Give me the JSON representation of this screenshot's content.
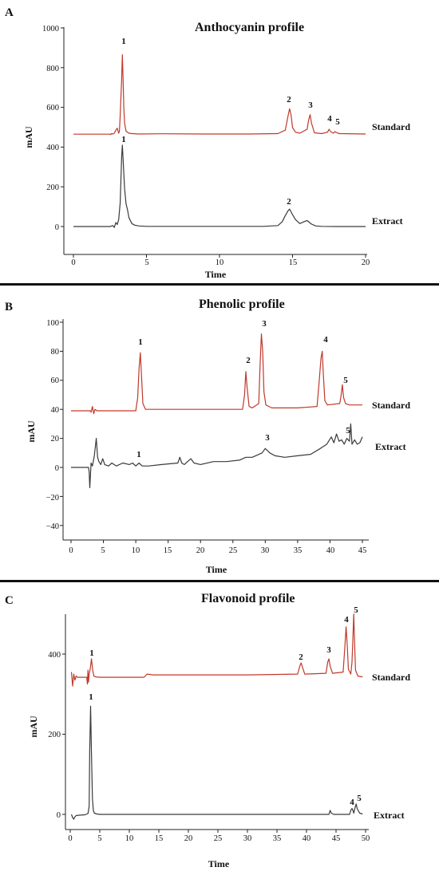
{
  "chart_data": [
    {
      "type": "line",
      "panel_letter": "A",
      "title": "Anthocyanin profile",
      "xlabel": "Time",
      "ylabel": "mAU",
      "xlim": [
        -0.8,
        20
      ],
      "ylim": [
        -115,
        1000
      ],
      "xticks": [
        "0",
        "5",
        "10",
        "15",
        "20"
      ],
      "yticks": [
        "0",
        "200",
        "400",
        "600",
        "800",
        "1000"
      ],
      "series": [
        {
          "name": "Standard",
          "color": "#c0392b",
          "x": [
            0,
            2.5,
            2.55,
            2.6,
            2.7,
            2.8,
            2.9,
            3.0,
            3.05,
            3.1,
            3.15,
            3.2,
            3.3,
            3.35,
            3.4,
            3.45,
            3.5,
            3.6,
            3.8,
            4.0,
            4.5,
            6,
            9,
            12,
            14.0,
            14.5,
            14.7,
            14.8,
            14.9,
            15.0,
            15.2,
            15.5,
            16.0,
            16.1,
            16.2,
            16.3,
            16.5,
            17.0,
            17.4,
            17.5,
            17.6,
            17.8,
            17.9,
            18.0,
            18.2,
            20
          ],
          "y": [
            465,
            465,
            463,
            468,
            466,
            470,
            485,
            495,
            482,
            470,
            480,
            560,
            740,
            865,
            745,
            600,
            520,
            480,
            470,
            468,
            466,
            467,
            466,
            466,
            468,
            485,
            560,
            593,
            560,
            498,
            475,
            470,
            490,
            535,
            563,
            520,
            472,
            468,
            475,
            490,
            478,
            470,
            478,
            473,
            468,
            466
          ]
        },
        {
          "name": "Extract",
          "color": "#3a3a3a",
          "x": [
            0,
            2.5,
            2.7,
            2.8,
            2.9,
            3.0,
            3.1,
            3.2,
            3.3,
            3.35,
            3.4,
            3.5,
            3.6,
            3.7,
            3.8,
            4.0,
            4.2,
            4.5,
            5,
            6,
            8,
            10,
            13,
            14.0,
            14.3,
            14.5,
            14.7,
            14.8,
            15.0,
            15.2,
            15.5,
            15.8,
            16.0,
            16.3,
            16.6,
            17,
            18,
            20
          ],
          "y": [
            0,
            0,
            5,
            -5,
            20,
            10,
            35,
            120,
            350,
            410,
            340,
            190,
            115,
            85,
            45,
            15,
            7,
            3,
            1,
            1,
            1,
            1,
            1,
            5,
            25,
            55,
            80,
            88,
            60,
            35,
            15,
            25,
            30,
            12,
            3,
            1,
            0,
            0
          ]
        }
      ],
      "trace_labels": [
        "Standard",
        "Extract"
      ],
      "peak_labels": [
        "1",
        "2",
        "3",
        "4",
        "5",
        "1",
        "2"
      ]
    },
    {
      "type": "line",
      "panel_letter": "B",
      "title": "Phenolic profile",
      "xlabel": "Time",
      "ylabel": "mAU",
      "xlim": [
        -1,
        45
      ],
      "ylim": [
        -55,
        100
      ],
      "xticks": [
        "0",
        "5",
        "10",
        "15",
        "20",
        "25",
        "30",
        "35",
        "40",
        "45"
      ],
      "yticks": [
        "−40",
        "−20",
        "0",
        "20",
        "40",
        "60",
        "80",
        "100"
      ],
      "series": [
        {
          "name": "Standard",
          "color": "#c0392b",
          "x": [
            0,
            3.0,
            3.1,
            3.3,
            3.5,
            3.7,
            4,
            10,
            10.3,
            10.5,
            10.7,
            10.9,
            11.1,
            11.5,
            20,
            26.5,
            26.8,
            27.0,
            27.2,
            27.5,
            28,
            29.0,
            29.2,
            29.4,
            29.6,
            29.8,
            30.1,
            31,
            35,
            38.0,
            38.3,
            38.6,
            38.8,
            39.0,
            39.2,
            39.6,
            41.5,
            41.7,
            41.9,
            42.1,
            42.4,
            43,
            45
          ],
          "y": [
            39,
            39,
            38,
            42,
            37,
            40,
            39,
            39,
            48,
            68,
            79,
            62,
            44,
            40,
            40,
            40,
            50,
            66,
            55,
            42,
            41,
            44,
            70,
            92,
            80,
            52,
            43,
            41,
            41,
            42,
            58,
            75,
            80,
            62,
            46,
            43,
            44,
            49,
            57,
            48,
            44,
            43,
            43
          ]
        },
        {
          "name": "Extract",
          "color": "#3a3a3a",
          "x": [
            0,
            2.7,
            2.8,
            2.9,
            3.1,
            3.3,
            3.6,
            3.9,
            4.1,
            4.3,
            4.6,
            4.9,
            5.2,
            5.8,
            6.3,
            7,
            8,
            9,
            9.5,
            10,
            10.5,
            11,
            12,
            14,
            16.5,
            16.8,
            17.1,
            17.5,
            18.5,
            19,
            20,
            22,
            24,
            26,
            27,
            28,
            29.5,
            30,
            30.7,
            31.5,
            33,
            35,
            37,
            38.5,
            39.5,
            40.2,
            40.6,
            41,
            41.4,
            41.8,
            42.2,
            42.6,
            43.0,
            43.2,
            43.4,
            43.8,
            44.2,
            44.6,
            45
          ],
          "y": [
            0,
            0,
            -3,
            -14,
            3,
            1,
            8,
            20,
            7,
            4,
            2,
            6,
            2,
            1,
            3,
            1,
            3,
            2,
            3,
            1,
            3,
            1,
            1,
            2,
            3,
            7,
            3,
            2,
            6,
            3,
            2,
            4,
            4,
            5,
            7,
            7,
            10,
            13,
            10,
            8,
            7,
            8,
            9,
            13,
            16,
            21,
            17,
            23,
            18,
            19,
            16,
            20,
            18,
            30,
            16,
            19,
            16,
            17,
            21
          ]
        }
      ],
      "trace_labels": [
        "Standard",
        "Extract"
      ],
      "peak_labels": [
        "1",
        "2",
        "3",
        "4",
        "5",
        "1",
        "3",
        "5"
      ]
    },
    {
      "type": "line",
      "panel_letter": "C",
      "title": "Flavonoid profile",
      "xlabel": "Time",
      "ylabel": "mAU",
      "xlim": [
        -0.5,
        50
      ],
      "ylim": [
        -25,
        500
      ],
      "xticks": [
        "0",
        "5",
        "10",
        "15",
        "20",
        "25",
        "30",
        "35",
        "40",
        "45",
        "50"
      ],
      "yticks": [
        "0",
        "200",
        "400"
      ],
      "series": [
        {
          "name": "Standard",
          "color": "#c0392b",
          "x": [
            0.2,
            0.4,
            0.6,
            0.8,
            1.0,
            1.2,
            2.8,
            2.9,
            3.0,
            3.1,
            3.2,
            3.4,
            3.6,
            3.8,
            4.0,
            4.3,
            5,
            12.5,
            13.0,
            13.5,
            14,
            20,
            30,
            38.5,
            38.9,
            39.1,
            39.3,
            39.7,
            43.3,
            43.6,
            43.8,
            44.0,
            44.4,
            46.2,
            46.5,
            46.7,
            46.9,
            47.1,
            47.5,
            47.7,
            47.9,
            48.0,
            48.1,
            48.3,
            48.7,
            49.5
          ],
          "y": [
            355,
            320,
            350,
            335,
            345,
            342,
            342,
            325,
            360,
            330,
            350,
            365,
            388,
            360,
            345,
            343,
            342,
            342,
            350,
            349,
            348,
            348,
            348,
            350,
            372,
            378,
            368,
            350,
            352,
            380,
            388,
            370,
            352,
            355,
            420,
            468,
            420,
            362,
            350,
            380,
            460,
            500,
            450,
            360,
            345,
            343
          ]
        },
        {
          "name": "Extract",
          "color": "#3a3a3a",
          "x": [
            0.2,
            0.4,
            0.6,
            0.8,
            1.0,
            1.5,
            2.5,
            3.0,
            3.2,
            3.3,
            3.45,
            3.6,
            3.75,
            3.9,
            4.1,
            4.5,
            5,
            10,
            20,
            30,
            38.5,
            43.8,
            44.0,
            44.2,
            44.6,
            46,
            47.3,
            47.5,
            47.7,
            47.9,
            48.0,
            48.2,
            48.4,
            48.6,
            49,
            49.5
          ],
          "y": [
            0,
            -8,
            -12,
            -6,
            -3,
            -2,
            -1,
            2,
            20,
            160,
            270,
            150,
            40,
            10,
            3,
            1,
            0,
            0,
            0,
            0,
            0,
            0,
            10,
            3,
            0,
            0,
            0,
            10,
            15,
            8,
            3,
            16,
            26,
            14,
            3,
            1
          ]
        }
      ],
      "trace_labels": [
        "Standard",
        "Extract"
      ],
      "peak_labels": [
        "1",
        "2",
        "3",
        "4",
        "5",
        "1",
        "4",
        "5"
      ]
    }
  ]
}
